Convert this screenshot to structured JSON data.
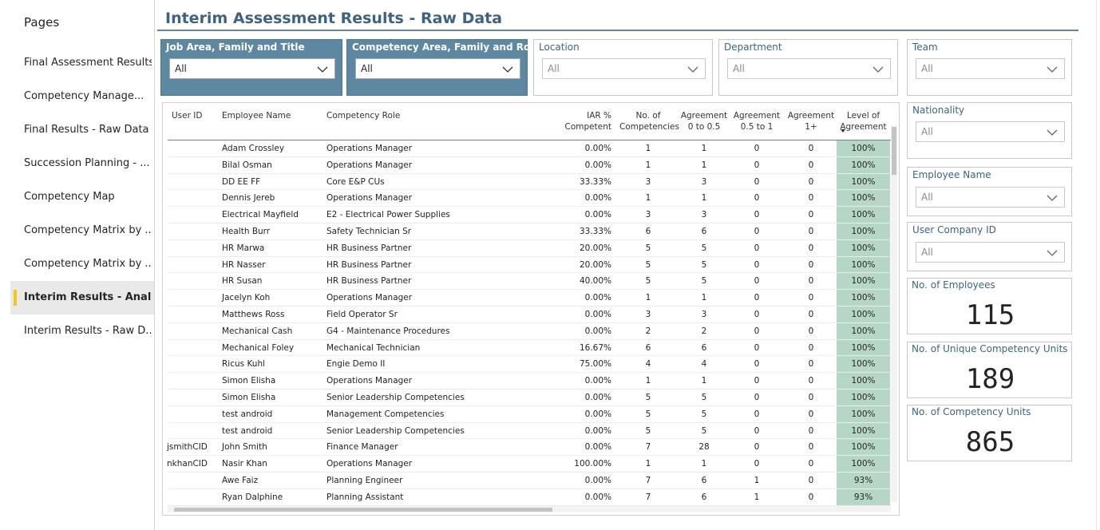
{
  "sidebar": {
    "title": "Pages",
    "items": [
      "Final Assessment Results",
      "Competency Manage...",
      "Final Results - Raw Data",
      "Succession Planning - ...",
      "Competency Map",
      "Competency Matrix by ...",
      "Competency Matrix by ...",
      "Interim Results - Anal...",
      "Interim Results - Raw D..."
    ],
    "selected": 7
  },
  "header": {
    "title": "Interim Assessment Results - Raw Data"
  },
  "filters": [
    {
      "label": "Job Area, Family and Title",
      "value": "All"
    },
    {
      "label": "Competency Area, Family and Role",
      "value": "All"
    },
    {
      "label": "Location",
      "value": "All"
    },
    {
      "label": "Department",
      "value": "All"
    },
    {
      "label": "Team",
      "value": "All"
    },
    {
      "label": "Nationality",
      "value": "All"
    },
    {
      "label": "Employee Name",
      "value": "All"
    },
    {
      "label": "User Company ID",
      "value": "All"
    }
  ],
  "cards": [
    {
      "label": "No. of Employees",
      "value": 115
    },
    {
      "label": "No. of Unique Competency Units",
      "value": 189
    },
    {
      "label": "No. of Competency Units",
      "value": 865
    }
  ],
  "table": {
    "columns": [
      "User ID",
      "Employee Name",
      "Competency Role",
      "IAR % Competent",
      "No. of Competencies",
      "Agreement 0 to 0.5",
      "Agreement 0.5 to 1",
      "Agreement 1+",
      "Level of Agreement"
    ],
    "rows": [
      [
        null,
        "Adam Crossley",
        "Operations Manager",
        "0.00%",
        1,
        1,
        0,
        0,
        "100%"
      ],
      [
        null,
        "Bilal Osman",
        "Operations Manager",
        "0.00%",
        1,
        1,
        0,
        0,
        "100%"
      ],
      [
        null,
        "DD EE FF",
        "Core E&P CUs",
        "33.33%",
        3,
        3,
        0,
        0,
        "100%"
      ],
      [
        null,
        "Dennis Jereb",
        "Operations Manager",
        "0.00%",
        1,
        1,
        0,
        0,
        "100%"
      ],
      [
        null,
        "Electrical Mayfield",
        "E2 - Electrical Power Supplies",
        "0.00%",
        3,
        3,
        0,
        0,
        "100%"
      ],
      [
        null,
        "Health Burr",
        "Safety Technician Sr",
        "33.33%",
        6,
        6,
        0,
        0,
        "100%"
      ],
      [
        null,
        "HR Marwa",
        "HR Business Partner",
        "20.00%",
        5,
        5,
        0,
        0,
        "100%"
      ],
      [
        null,
        "HR Nasser",
        "HR Business Partner",
        "20.00%",
        5,
        5,
        0,
        0,
        "100%"
      ],
      [
        null,
        "HR Susan",
        "HR Business Partner",
        "40.00%",
        5,
        5,
        0,
        0,
        "100%"
      ],
      [
        null,
        "Jacelyn Koh",
        "Operations Manager",
        "0.00%",
        1,
        1,
        0,
        0,
        "100%"
      ],
      [
        null,
        "Matthews Ross",
        "Field Operator Sr",
        "0.00%",
        3,
        3,
        0,
        0,
        "100%"
      ],
      [
        null,
        "Mechanical Cash",
        "G4 - Maintenance Procedures",
        "0.00%",
        2,
        2,
        0,
        0,
        "100%"
      ],
      [
        null,
        "Mechanical Foley",
        "Mechanical Technician",
        "16.67%",
        6,
        6,
        0,
        0,
        "100%"
      ],
      [
        null,
        "Ricus Kuhl",
        "Engie Demo II",
        "75.00%",
        4,
        4,
        0,
        0,
        "100%"
      ],
      [
        null,
        "Simon Elisha",
        "Operations Manager",
        "0.00%",
        1,
        1,
        0,
        0,
        "100%"
      ],
      [
        null,
        "Simon Elisha",
        "Senior Leadership Competencies",
        "0.00%",
        5,
        5,
        0,
        0,
        "100%"
      ],
      [
        null,
        "test android",
        "Management Competencies",
        "0.00%",
        5,
        5,
        0,
        0,
        "100%"
      ],
      [
        null,
        "test android",
        "Senior Leadership Competencies",
        "0.00%",
        5,
        5,
        0,
        0,
        "100%"
      ],
      [
        "jsmithCID",
        "John Smith",
        "Finance Manager",
        "0.00%",
        7,
        28,
        0,
        0,
        "100%"
      ],
      [
        "nkhanCID",
        "Nasir Khan",
        "Operations Manager",
        "100.00%",
        1,
        1,
        0,
        0,
        "100%"
      ],
      [
        null,
        "Awe Faiz",
        "Planning Engineer",
        "0.00%",
        7,
        6,
        1,
        0,
        "93%"
      ],
      [
        null,
        "Ryan Dalphine",
        "Planning Assistant",
        "0.00%",
        7,
        6,
        1,
        0,
        "93%"
      ]
    ]
  }
}
